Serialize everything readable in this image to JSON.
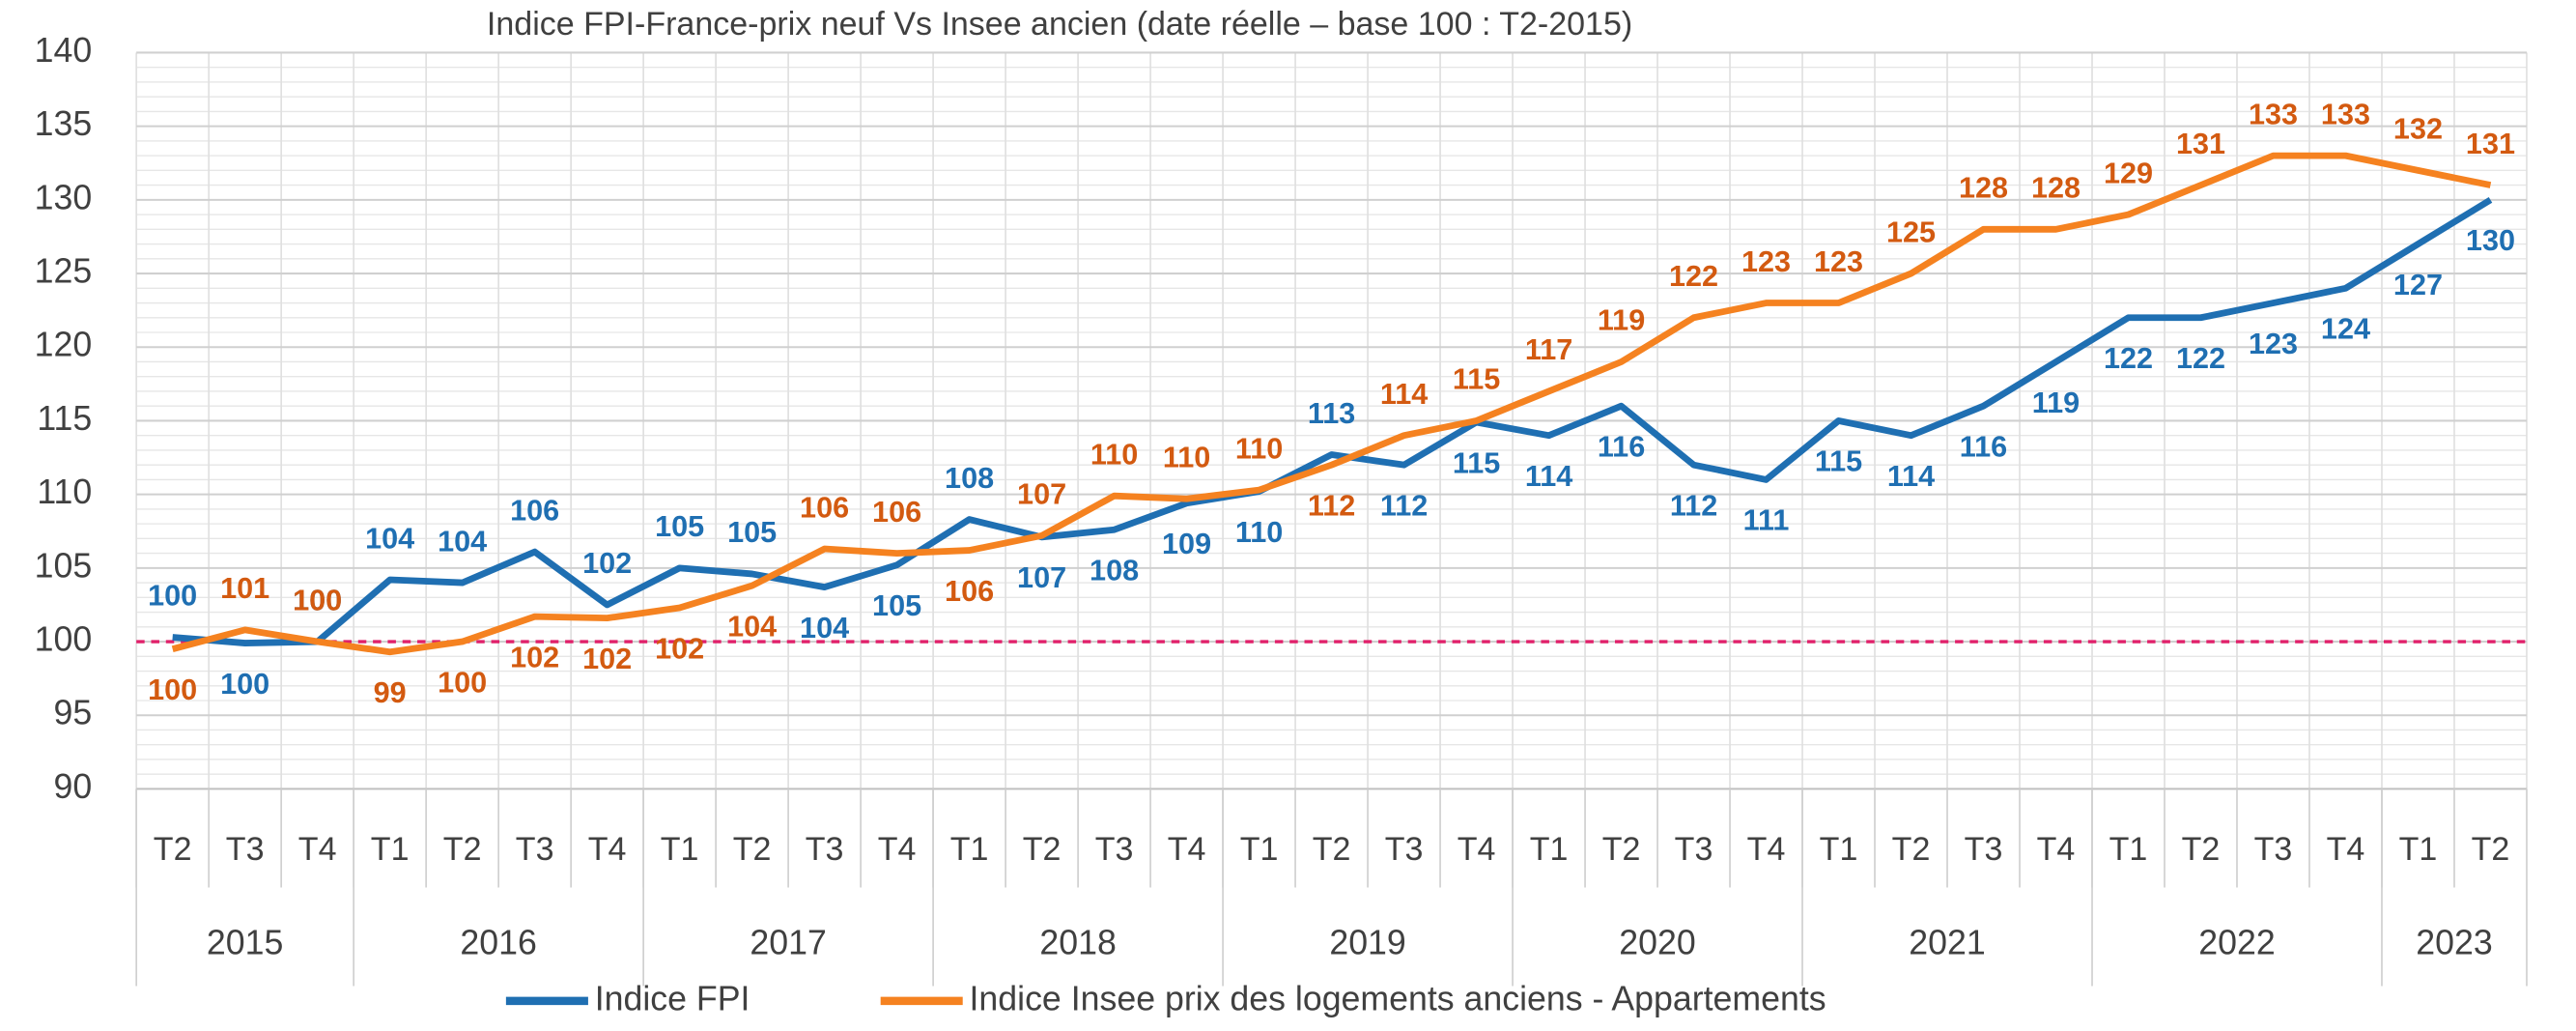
{
  "chart_data": {
    "type": "line",
    "title": "Indice FPI-France-prix neuf Vs Insee ancien (date réelle – base 100 : T2-2015)",
    "categories": [
      "T2",
      "T3",
      "T4",
      "T1",
      "T2",
      "T3",
      "T4",
      "T1",
      "T2",
      "T3",
      "T4",
      "T1",
      "T2",
      "T3",
      "T4",
      "T1",
      "T2",
      "T3",
      "T4",
      "T1",
      "T2",
      "T3",
      "T4",
      "T1",
      "T2",
      "T3",
      "T4",
      "T1",
      "T2",
      "T3",
      "T4",
      "T1",
      "T2"
    ],
    "category_groups": [
      {
        "label": "2015",
        "size": 3
      },
      {
        "label": "2016",
        "size": 4
      },
      {
        "label": "2017",
        "size": 4
      },
      {
        "label": "2018",
        "size": 4
      },
      {
        "label": "2019",
        "size": 4
      },
      {
        "label": "2020",
        "size": 4
      },
      {
        "label": "2021",
        "size": 4
      },
      {
        "label": "2022",
        "size": 4
      },
      {
        "label": "2023",
        "size": 2
      }
    ],
    "series": [
      {
        "name": "Indice FPI",
        "color": "#1f6fb2",
        "label_color": "#1f6fb2",
        "values": [
          100.3,
          99.9,
          100,
          104.2,
          104,
          106.1,
          102.5,
          105,
          104.6,
          103.7,
          105.2,
          108.3,
          107.1,
          107.6,
          109.4,
          110.2,
          112.7,
          112,
          114.9,
          114,
          116,
          112,
          111,
          115,
          114,
          116,
          119,
          122,
          122,
          123,
          124,
          127,
          130
        ],
        "value_labels": [
          "100",
          "100",
          "100",
          "104",
          "104",
          "106",
          "102",
          "105",
          "105",
          "104",
          "105",
          "108",
          "107",
          "108",
          "109",
          "110",
          "113",
          "112",
          "115",
          "114",
          "116",
          "112",
          "111",
          "115",
          "114",
          "116",
          "119",
          "122",
          "122",
          "123",
          "124",
          "127",
          "130"
        ]
      },
      {
        "name": "Indice Insee prix des logements anciens - Appartements",
        "color": "#f58220",
        "label_color": "#d35a10",
        "values": [
          99.5,
          100.8,
          100,
          99.3,
          100,
          101.7,
          101.6,
          102.3,
          103.8,
          106.3,
          106,
          106.2,
          107.2,
          109.9,
          109.7,
          110.3,
          112,
          114,
          115,
          117,
          119,
          122,
          123,
          123,
          125,
          128,
          128,
          129,
          131,
          133,
          133,
          132,
          131
        ],
        "value_labels": [
          "100",
          "101",
          "100",
          "99",
          "100",
          "102",
          "102",
          "102",
          "104",
          "106",
          "106",
          "106",
          "107",
          "110",
          "110",
          "110",
          "112",
          "114",
          "115",
          "117",
          "119",
          "122",
          "123",
          "123",
          "125",
          "128",
          "128",
          "129",
          "131",
          "133",
          "133",
          "132",
          "131"
        ]
      }
    ],
    "reference_line": {
      "value": 100,
      "color": "#e0206a"
    },
    "ylim": [
      90,
      140
    ],
    "yticks": [
      90,
      95,
      100,
      105,
      110,
      115,
      120,
      125,
      130,
      135,
      140
    ],
    "grid": true
  }
}
